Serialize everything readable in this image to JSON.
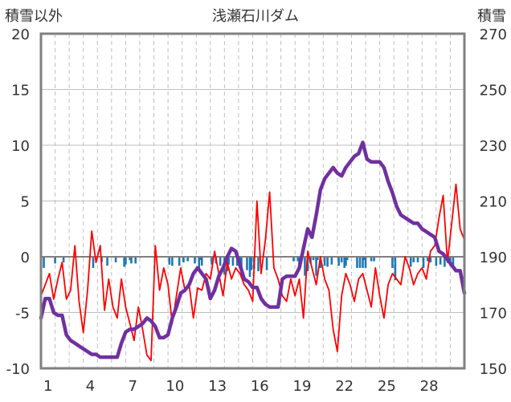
{
  "chart_data": {
    "type": "line",
    "title": "浅瀬石川ダム",
    "y_left_label": "積雪以外",
    "y_right_label": "積雪",
    "y_left_lim": [
      -10,
      20
    ],
    "y_right_lim": [
      150,
      270
    ],
    "y_left_ticks": [
      -10,
      -5,
      0,
      5,
      10,
      15,
      20
    ],
    "y_right_ticks": [
      150,
      170,
      190,
      210,
      230,
      250,
      270
    ],
    "x_lim": [
      0,
      30
    ],
    "x_ticks": [
      1,
      4,
      7,
      10,
      13,
      16,
      19,
      22,
      25,
      28
    ],
    "grid": {
      "horizontal": true,
      "vertical_dashed": true
    },
    "colors": {
      "temp": "#ff0000",
      "snow": "#7030a0",
      "precip": "#1f77b4",
      "zero": "#808080",
      "frame": "#808080"
    },
    "series": [
      {
        "axis": "left",
        "style": "thin-red-line",
        "x": [
          0.0,
          0.3,
          0.6,
          0.9,
          1.2,
          1.5,
          1.8,
          2.1,
          2.4,
          2.7,
          3.0,
          3.3,
          3.6,
          3.9,
          4.2,
          4.5,
          4.8,
          5.1,
          5.4,
          5.7,
          6.0,
          6.3,
          6.6,
          6.9,
          7.2,
          7.5,
          7.8,
          8.1,
          8.4,
          8.7,
          9.0,
          9.3,
          9.6,
          9.9,
          10.2,
          10.5,
          10.8,
          11.1,
          11.4,
          11.7,
          12.0,
          12.3,
          12.6,
          12.9,
          13.2,
          13.5,
          13.8,
          14.1,
          14.4,
          14.7,
          15.0,
          15.3,
          15.6,
          15.9,
          16.2,
          16.5,
          16.8,
          17.1,
          17.4,
          17.7,
          18.0,
          18.3,
          18.6,
          18.9,
          19.2,
          19.5,
          19.8,
          20.1,
          20.4,
          20.7,
          21.0,
          21.3,
          21.6,
          21.9,
          22.2,
          22.5,
          22.8,
          23.1,
          23.4,
          23.7,
          24.0,
          24.3,
          24.6,
          24.9,
          25.2,
          25.5,
          25.8,
          26.1,
          26.4,
          26.7,
          27.0,
          27.3,
          27.6,
          27.9,
          28.2,
          28.5,
          28.8,
          29.1,
          29.4,
          29.7,
          30.0
        ],
        "values": [
          -3.5,
          -2.5,
          -1.5,
          -3.8,
          -2.0,
          -0.5,
          -3.8,
          -3.0,
          1.0,
          -4.0,
          -6.8,
          -3.0,
          2.3,
          -0.5,
          1.0,
          -4.8,
          -2.0,
          -4.5,
          -5.5,
          -2.0,
          -4.5,
          -6.0,
          -7.5,
          -4.5,
          -6.5,
          -8.8,
          -9.3,
          1.0,
          -3.0,
          -1.0,
          -2.5,
          -6.0,
          -3.5,
          -1.0,
          -3.0,
          -2.5,
          -5.5,
          -2.8,
          -3.0,
          -1.5,
          -2.0,
          0.5,
          -1.5,
          -3.5,
          -0.5,
          -2.0,
          -1.0,
          -1.5,
          -2.5,
          -3.0,
          -4.0,
          5.0,
          -1.5,
          1.5,
          5.8,
          -1.0,
          -2.0,
          -3.5,
          -4.0,
          -2.0,
          -3.5,
          -2.0,
          -5.5,
          0.5,
          -1.0,
          -2.5,
          0.0,
          -2.0,
          -3.0,
          -6.5,
          -8.5,
          -3.5,
          -1.5,
          -2.5,
          -4.0,
          -2.0,
          -1.5,
          -3.0,
          -4.5,
          -1.0,
          -3.5,
          -5.5,
          -2.5,
          -1.5,
          -2.0,
          -2.5,
          0.0,
          -1.0,
          -2.5,
          -1.5,
          -1.0,
          -2.0,
          0.5,
          1.0,
          3.5,
          5.5,
          -0.5,
          3.0,
          6.5,
          2.5,
          1.5
        ]
      },
      {
        "axis": "right",
        "style": "thick-purple-line",
        "x": [
          0.0,
          0.3,
          0.6,
          0.9,
          1.2,
          1.5,
          1.8,
          2.1,
          2.4,
          2.7,
          3.0,
          3.3,
          3.6,
          3.9,
          4.2,
          4.5,
          4.8,
          5.1,
          5.4,
          5.7,
          6.0,
          6.3,
          6.6,
          6.9,
          7.2,
          7.5,
          7.8,
          8.1,
          8.4,
          8.7,
          9.0,
          9.3,
          9.6,
          9.9,
          10.2,
          10.5,
          10.8,
          11.1,
          11.4,
          11.7,
          12.0,
          12.3,
          12.6,
          12.9,
          13.2,
          13.5,
          13.8,
          14.1,
          14.4,
          14.7,
          15.0,
          15.3,
          15.6,
          15.9,
          16.2,
          16.5,
          16.8,
          17.1,
          17.4,
          17.7,
          18.0,
          18.3,
          18.6,
          18.9,
          19.2,
          19.5,
          19.8,
          20.1,
          20.4,
          20.7,
          21.0,
          21.3,
          21.6,
          21.9,
          22.2,
          22.5,
          22.8,
          23.1,
          23.4,
          23.7,
          24.0,
          24.3,
          24.6,
          24.9,
          25.2,
          25.5,
          25.8,
          26.1,
          26.4,
          26.7,
          27.0,
          27.3,
          27.6,
          27.9,
          28.2,
          28.5,
          28.8,
          29.1,
          29.4,
          29.7,
          30.0
        ],
        "values": [
          168,
          175,
          175,
          170,
          169,
          169,
          162,
          160,
          159,
          158,
          157,
          156,
          155,
          155,
          154,
          154,
          154,
          154,
          154,
          159,
          163,
          164,
          164,
          165,
          166,
          168,
          167,
          165,
          161,
          161,
          162,
          168,
          172,
          177,
          178,
          180,
          184,
          186,
          184,
          182,
          175,
          178,
          183,
          186,
          190,
          193,
          192,
          187,
          182,
          181,
          179,
          179,
          175,
          173,
          172,
          172,
          172,
          182,
          183,
          183,
          183,
          186,
          193,
          200,
          197,
          205,
          214,
          218,
          220,
          222,
          220,
          219,
          222,
          224,
          226,
          227,
          231,
          225,
          224,
          224,
          224,
          222,
          217,
          213,
          208,
          205,
          204,
          203,
          202,
          202,
          200,
          199,
          198,
          197,
          192,
          191,
          189,
          187,
          185,
          185,
          177
        ]
      },
      {
        "axis": "left",
        "style": "blue-bars-below-zero",
        "x": [
          0.2,
          1.0,
          1.6,
          3.7,
          4.3,
          4.7,
          5.3,
          5.9,
          6.0,
          6.3,
          6.4,
          6.7,
          9.1,
          9.3,
          9.8,
          10.1,
          10.4,
          10.9,
          11.2,
          11.3,
          11.4,
          12.1,
          12.4,
          12.7,
          13.0,
          13.2,
          13.3,
          13.6,
          13.9,
          14.1,
          14.2,
          14.6,
          14.8,
          14.9,
          15.1,
          15.4,
          16.0,
          17.9,
          18.2,
          18.3,
          18.5,
          18.7,
          18.9,
          19.1,
          19.3,
          19.5,
          19.6,
          19.8,
          20.1,
          20.3,
          20.6,
          21.1,
          21.3,
          21.5,
          21.6,
          21.7,
          22.4,
          22.6,
          22.8,
          22.9,
          23.0,
          23.4,
          23.6,
          24.9,
          25.1,
          26.2,
          26.4,
          26.7,
          27.1,
          27.4,
          27.6,
          28.0,
          28.3,
          28.6,
          28.7,
          28.9,
          29.0,
          29.2
        ],
        "values": [
          -1.0,
          -0.6,
          -0.5,
          -1.0,
          -0.5,
          -0.8,
          -0.5,
          -0.9,
          -0.7,
          -0.3,
          -0.6,
          -0.6,
          -0.7,
          -0.8,
          -0.8,
          -0.5,
          -0.4,
          -0.6,
          -1.0,
          -0.3,
          -0.8,
          -0.7,
          -0.6,
          -0.8,
          -1.6,
          -1.3,
          -0.7,
          -0.8,
          -0.8,
          -0.5,
          -1.1,
          -1.2,
          -1.8,
          -1.2,
          -1.1,
          -1.3,
          -1.2,
          -0.4,
          -0.4,
          -1.1,
          -0.3,
          -1.7,
          -1.3,
          -0.6,
          -0.3,
          -1.7,
          -0.3,
          -1.0,
          -0.8,
          -0.9,
          -0.7,
          -0.8,
          -0.5,
          -1.0,
          -0.8,
          -0.3,
          -1.0,
          -1.0,
          -1.0,
          -0.3,
          -1.0,
          -0.4,
          -0.4,
          -1.0,
          -2.1,
          -0.9,
          -0.5,
          -0.5,
          -1.0,
          -0.4,
          -0.5,
          -0.8,
          -0.7,
          -0.9,
          -0.3,
          -0.3,
          -0.8,
          -0.8
        ]
      }
    ]
  }
}
